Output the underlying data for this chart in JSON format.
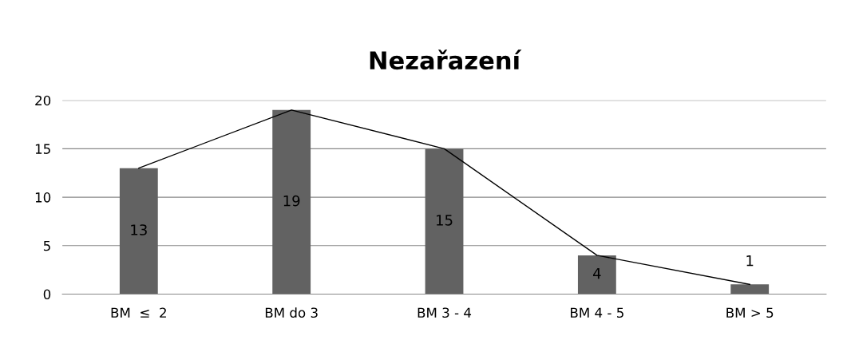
{
  "chart_data": {
    "type": "bar",
    "title": "Nezařazení",
    "categories": [
      "BM  ≤  2",
      "BM do 3",
      "BM 3 - 4",
      "BM 4 - 5",
      "BM > 5"
    ],
    "series": [
      {
        "color": "#626262",
        "values": [
          13,
          19,
          15,
          4,
          1
        ],
        "value_labels": [
          "13",
          "19",
          "15",
          "4",
          "1"
        ]
      },
      {
        "type": "line",
        "color": "#000000",
        "values": [
          13,
          19,
          15,
          4,
          1
        ]
      }
    ],
    "ylim": [
      0,
      20
    ],
    "yticks": [
      0,
      5,
      10,
      15,
      20
    ],
    "grid": "y",
    "marker": "none",
    "line_style": "solid"
  }
}
